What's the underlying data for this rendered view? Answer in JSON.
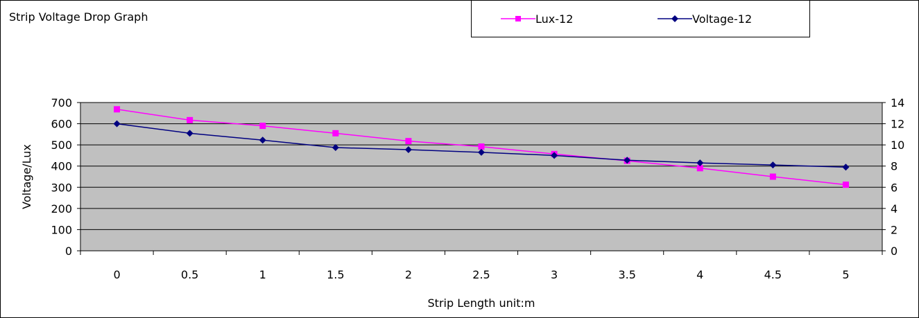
{
  "chart_data": {
    "type": "line",
    "title": "Strip Voltage Drop Graph",
    "xlabel": "Strip Length unit:m",
    "ylabel": "Voltage/Lux",
    "x": [
      0,
      0.5,
      1,
      1.5,
      2,
      2.5,
      3,
      3.5,
      4,
      4.5,
      5
    ],
    "x_tick_labels": [
      "0",
      "0.5",
      "1",
      "1.5",
      "2",
      "2.5",
      "3",
      "3.5",
      "4",
      "4.5",
      "5"
    ],
    "ylim": [
      0,
      700
    ],
    "y_ticks": [
      0,
      100,
      200,
      300,
      400,
      500,
      600,
      700
    ],
    "y2lim": [
      0,
      14
    ],
    "y2_ticks": [
      0,
      2,
      4,
      6,
      8,
      10,
      12,
      14
    ],
    "grid": true,
    "legend_position": "top-right",
    "series": [
      {
        "name": "Lux-12",
        "axis": "left",
        "color": "#ff00ff",
        "marker": "square",
        "values": [
          668,
          617,
          590,
          555,
          518,
          492,
          457,
          425,
          390,
          350,
          312
        ]
      },
      {
        "name": "Voltage-12",
        "axis": "right",
        "color": "#000080",
        "marker": "diamond",
        "values": [
          12.0,
          11.1,
          10.45,
          9.75,
          9.55,
          9.3,
          9.0,
          8.55,
          8.3,
          8.1,
          7.9
        ]
      }
    ],
    "colors": {
      "plot_background": "#c0c0c0",
      "gridline": "#000000"
    }
  }
}
